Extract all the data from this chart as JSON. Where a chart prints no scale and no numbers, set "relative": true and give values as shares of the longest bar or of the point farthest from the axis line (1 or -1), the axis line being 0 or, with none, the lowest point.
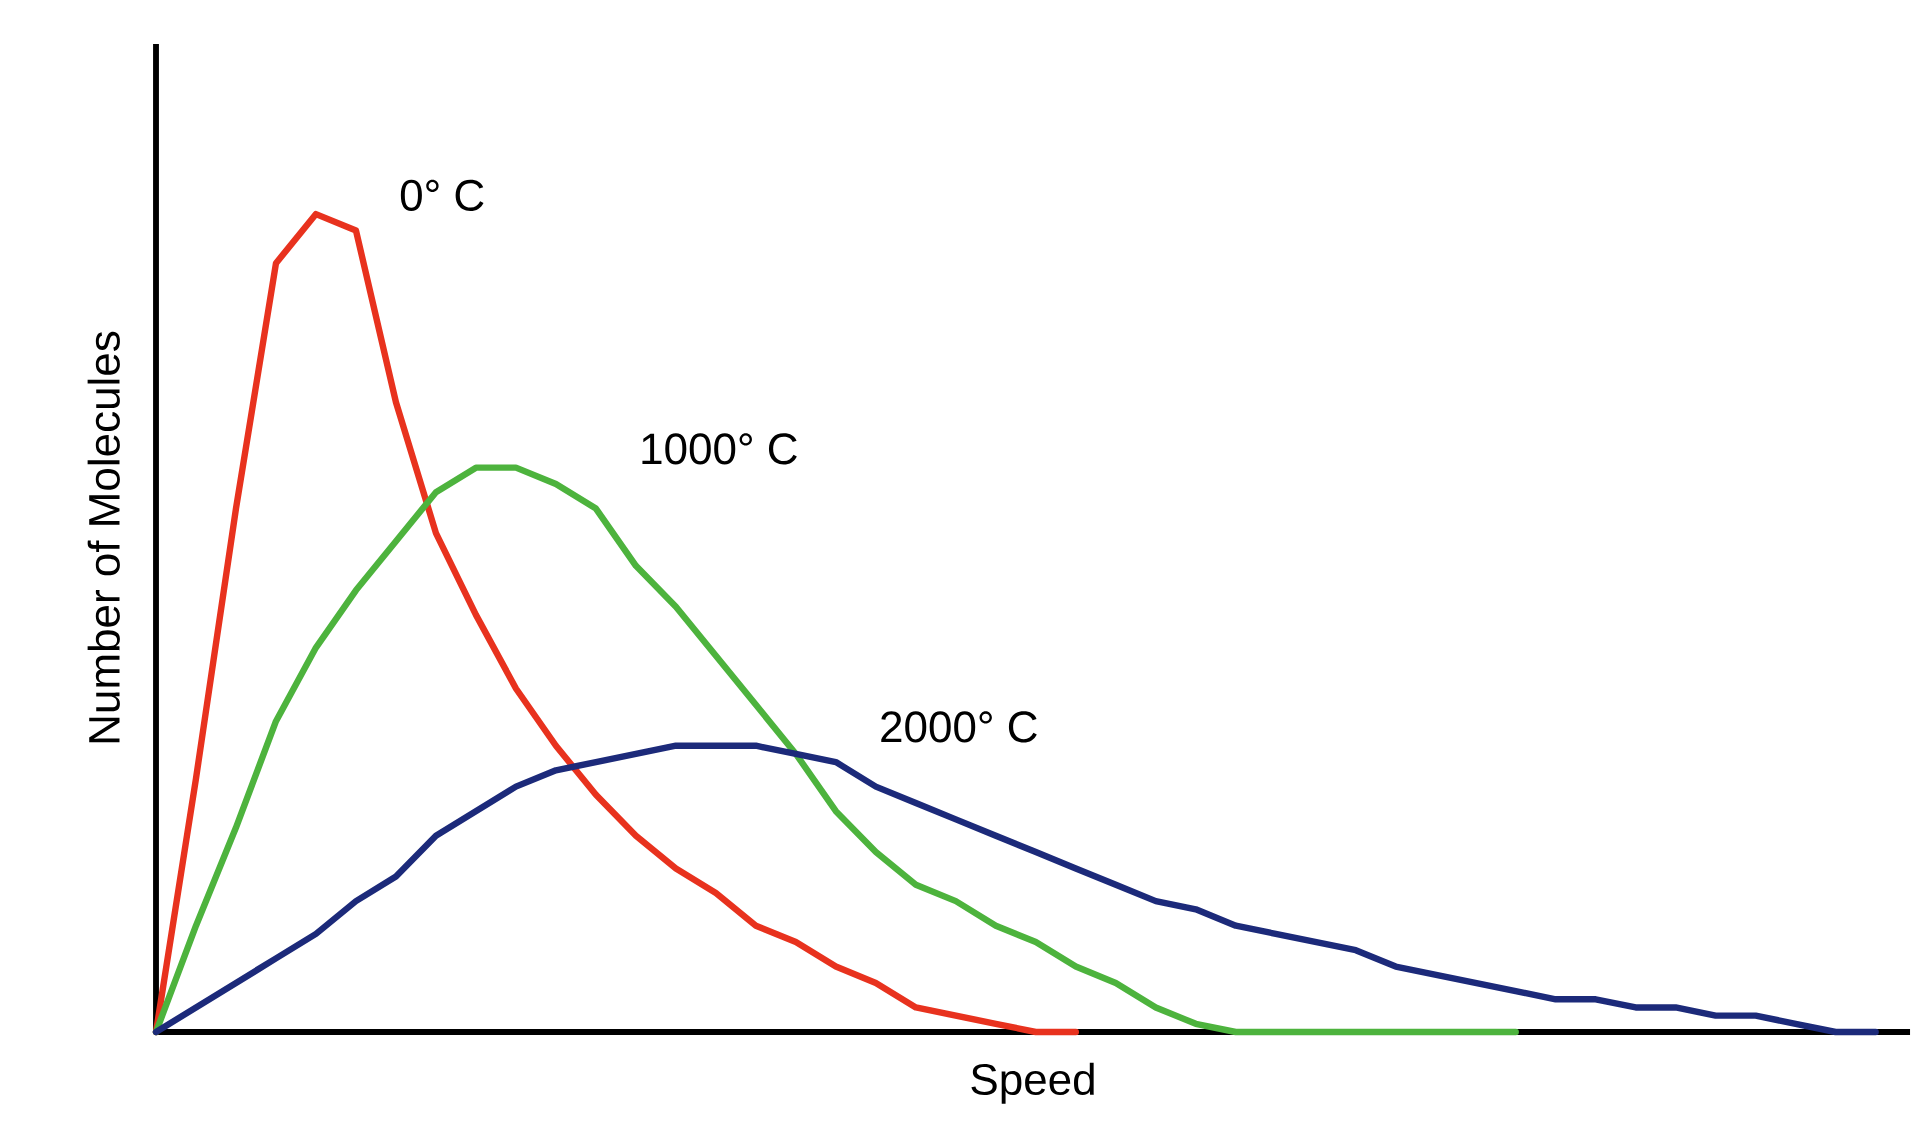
{
  "chart_data": {
    "type": "line",
    "relative": true,
    "xlabel": "Speed",
    "ylabel": "Number of Molecules",
    "marker": "none",
    "line_style": "solid",
    "categories": [
      null,
      null,
      null,
      null,
      null,
      null,
      null,
      null,
      null,
      null,
      null,
      null,
      null,
      null,
      null,
      null,
      null,
      null,
      null,
      null,
      null,
      null,
      null,
      null,
      null,
      null,
      null,
      null,
      null,
      null,
      null,
      null,
      null,
      null,
      null,
      null,
      null,
      null,
      null,
      null,
      null,
      null,
      null,
      null
    ],
    "series": [
      {
        "name": "0° C",
        "color": "#e8321e",
        "values": [
          0,
          0.31,
          0.64,
          0.94,
          1,
          0.98,
          0.77,
          0.61,
          0.51,
          0.42,
          0.35,
          0.29,
          0.24,
          0.2,
          0.17,
          0.13,
          0.11,
          0.08,
          0.06,
          0.03,
          0.02,
          0.01,
          0,
          0,
          null,
          null,
          null,
          null,
          null,
          null,
          null,
          null,
          null,
          null,
          null,
          null,
          null,
          null,
          null,
          null,
          null,
          null,
          null,
          null
        ]
      },
      {
        "name": "1000° C",
        "color": "#4db33d",
        "values": [
          0,
          0.13,
          0.25,
          0.38,
          0.47,
          0.54,
          0.6,
          0.66,
          0.69,
          0.69,
          0.67,
          0.64,
          0.57,
          0.52,
          0.46,
          0.4,
          0.34,
          0.27,
          0.22,
          0.18,
          0.16,
          0.13,
          0.11,
          0.08,
          0.06,
          0.03,
          0.01,
          0,
          0,
          0,
          0,
          0,
          0,
          0,
          0,
          null,
          null,
          null,
          null,
          null,
          null,
          null,
          null,
          null
        ]
      },
      {
        "name": "2000° C",
        "color": "#1c2a7a",
        "values": [
          0,
          0.03,
          0.06,
          0.09,
          0.12,
          0.16,
          0.19,
          0.24,
          0.27,
          0.3,
          0.32,
          0.33,
          0.34,
          0.35,
          0.35,
          0.35,
          0.34,
          0.33,
          0.3,
          0.28,
          0.26,
          0.24,
          0.22,
          0.2,
          0.18,
          0.16,
          0.15,
          0.13,
          0.12,
          0.11,
          0.1,
          0.08,
          0.07,
          0.06,
          0.05,
          0.04,
          0.04,
          0.03,
          0.03,
          0.02,
          0.02,
          0.01,
          0,
          0
        ]
      }
    ]
  }
}
